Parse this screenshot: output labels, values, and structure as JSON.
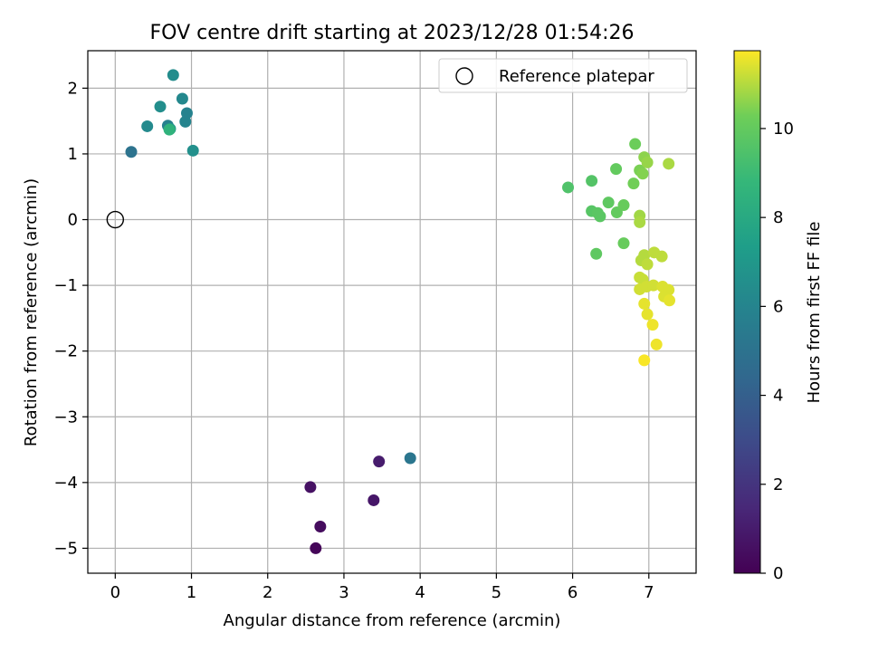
{
  "chart_data": {
    "type": "scatter",
    "title": "FOV centre drift starting at 2023/12/28 01:54:26",
    "xlabel": "Angular distance from reference (arcmin)",
    "ylabel": "Rotation from reference (arcmin)",
    "xlim": [
      -0.36,
      7.62
    ],
    "ylim": [
      -5.38,
      2.57
    ],
    "xticks": [
      0,
      1,
      2,
      3,
      4,
      5,
      6,
      7
    ],
    "yticks": [
      -5,
      -4,
      -3,
      -2,
      -1,
      0,
      1,
      2
    ],
    "grid": true,
    "legend": {
      "position": "top-right",
      "entries": [
        {
          "label": "Reference platepar",
          "marker": "open-circle"
        }
      ]
    },
    "reference_point": {
      "x": 0,
      "y": 0
    },
    "colorbar": {
      "label": "Hours from first FF file",
      "colormap": "viridis",
      "range": [
        0,
        11.75
      ],
      "ticks": [
        0,
        2,
        4,
        6,
        8,
        10
      ]
    },
    "points": [
      {
        "x": 2.63,
        "y": -5.0,
        "c": 0.2
      },
      {
        "x": 2.69,
        "y": -4.67,
        "c": 0.4
      },
      {
        "x": 2.56,
        "y": -4.07,
        "c": 0.6
      },
      {
        "x": 3.39,
        "y": -4.27,
        "c": 0.8
      },
      {
        "x": 3.46,
        "y": -3.68,
        "c": 1.0
      },
      {
        "x": 3.87,
        "y": -3.63,
        "c": 5.2
      },
      {
        "x": 0.21,
        "y": 1.03,
        "c": 5.0
      },
      {
        "x": 0.42,
        "y": 1.42,
        "c": 6.3
      },
      {
        "x": 0.59,
        "y": 1.72,
        "c": 6.5
      },
      {
        "x": 0.69,
        "y": 1.43,
        "c": 5.8
      },
      {
        "x": 0.76,
        "y": 2.2,
        "c": 6.4
      },
      {
        "x": 0.88,
        "y": 1.84,
        "c": 6.2
      },
      {
        "x": 0.92,
        "y": 1.49,
        "c": 6.0
      },
      {
        "x": 0.94,
        "y": 1.62,
        "c": 5.9
      },
      {
        "x": 1.02,
        "y": 1.05,
        "c": 6.6
      },
      {
        "x": 0.72,
        "y": 1.38,
        "c": 7.0
      },
      {
        "x": 0.71,
        "y": 1.37,
        "c": 8.5
      },
      {
        "x": 5.94,
        "y": 0.49,
        "c": 9.5
      },
      {
        "x": 6.25,
        "y": 0.59,
        "c": 9.6
      },
      {
        "x": 6.25,
        "y": 0.13,
        "c": 9.7
      },
      {
        "x": 6.33,
        "y": 0.1,
        "c": 9.8
      },
      {
        "x": 6.36,
        "y": 0.05,
        "c": 9.8
      },
      {
        "x": 6.31,
        "y": -0.52,
        "c": 9.9
      },
      {
        "x": 6.47,
        "y": 0.26,
        "c": 9.9
      },
      {
        "x": 6.57,
        "y": 0.77,
        "c": 10.0
      },
      {
        "x": 6.58,
        "y": 0.11,
        "c": 10.0
      },
      {
        "x": 6.67,
        "y": 0.22,
        "c": 10.1
      },
      {
        "x": 6.67,
        "y": -0.36,
        "c": 10.1
      },
      {
        "x": 6.82,
        "y": 1.15,
        "c": 10.2
      },
      {
        "x": 6.8,
        "y": 0.55,
        "c": 10.3
      },
      {
        "x": 6.88,
        "y": 0.75,
        "c": 10.4
      },
      {
        "x": 6.92,
        "y": 0.7,
        "c": 10.5
      },
      {
        "x": 6.94,
        "y": 0.95,
        "c": 10.6
      },
      {
        "x": 6.98,
        "y": 0.87,
        "c": 10.7
      },
      {
        "x": 6.88,
        "y": 0.06,
        "c": 10.8
      },
      {
        "x": 6.88,
        "y": -0.04,
        "c": 10.9
      },
      {
        "x": 7.26,
        "y": 0.85,
        "c": 10.9
      },
      {
        "x": 6.94,
        "y": -0.54,
        "c": 11.0
      },
      {
        "x": 6.9,
        "y": -0.62,
        "c": 11.0
      },
      {
        "x": 6.98,
        "y": -0.68,
        "c": 11.1
      },
      {
        "x": 7.07,
        "y": -0.5,
        "c": 11.1
      },
      {
        "x": 7.17,
        "y": -0.56,
        "c": 11.1
      },
      {
        "x": 6.88,
        "y": -0.88,
        "c": 11.2
      },
      {
        "x": 6.92,
        "y": -0.91,
        "c": 11.2
      },
      {
        "x": 6.88,
        "y": -1.06,
        "c": 11.3
      },
      {
        "x": 6.97,
        "y": -1.02,
        "c": 11.3
      },
      {
        "x": 7.06,
        "y": -1.0,
        "c": 11.3
      },
      {
        "x": 7.18,
        "y": -1.02,
        "c": 11.4
      },
      {
        "x": 7.26,
        "y": -1.07,
        "c": 11.4
      },
      {
        "x": 7.2,
        "y": -1.17,
        "c": 11.4
      },
      {
        "x": 7.27,
        "y": -1.23,
        "c": 11.5
      },
      {
        "x": 6.94,
        "y": -1.28,
        "c": 11.5
      },
      {
        "x": 6.98,
        "y": -1.44,
        "c": 11.5
      },
      {
        "x": 7.05,
        "y": -1.6,
        "c": 11.6
      },
      {
        "x": 7.1,
        "y": -1.9,
        "c": 11.6
      },
      {
        "x": 6.94,
        "y": -2.14,
        "c": 11.7
      }
    ]
  }
}
